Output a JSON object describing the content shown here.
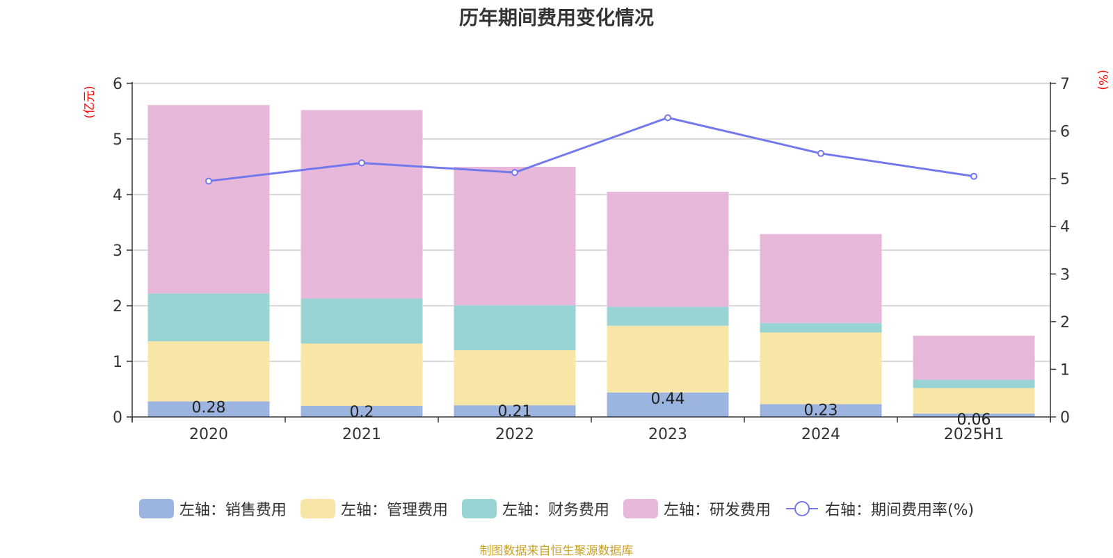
{
  "chart_data": {
    "type": "bar",
    "title": "历年期间费用变化情况",
    "categories": [
      "2020",
      "2021",
      "2022",
      "2023",
      "2024",
      "2025H1"
    ],
    "y_left": {
      "unit_label": "(亿元)",
      "range": [
        0,
        6
      ],
      "ticks": [
        "0",
        "1",
        "2",
        "3",
        "4",
        "5",
        "6"
      ]
    },
    "y_right": {
      "unit_label": "(%)",
      "range": [
        0,
        7
      ],
      "ticks": [
        "0",
        "1",
        "2",
        "3",
        "4",
        "5",
        "6",
        "7"
      ]
    },
    "grid": true,
    "stacked": true,
    "series": [
      {
        "name": "左轴：销售费用",
        "kind": "bar",
        "color": "#9bb5e0",
        "values": [
          0.28,
          0.2,
          0.21,
          0.44,
          0.23,
          0.06
        ],
        "data_labels": [
          "0.28",
          "0.2",
          "0.21",
          "0.44",
          "0.23",
          "0.06"
        ]
      },
      {
        "name": "左轴：管理费用",
        "kind": "bar",
        "color": "#f8e6a6",
        "values": [
          1.08,
          1.12,
          0.99,
          1.2,
          1.29,
          0.46
        ]
      },
      {
        "name": "左轴：财务费用",
        "kind": "bar",
        "color": "#98d4d4",
        "values": [
          0.86,
          0.81,
          0.81,
          0.34,
          0.17,
          0.15
        ]
      },
      {
        "name": "左轴：研发费用",
        "kind": "bar",
        "color": "#e7b8d9",
        "values": [
          3.39,
          3.39,
          2.49,
          2.07,
          1.6,
          0.79
        ]
      },
      {
        "name": "右轴：期间费用率(%)",
        "kind": "line",
        "axis": "right",
        "color": "#7378ed",
        "values": [
          4.95,
          5.33,
          5.13,
          6.28,
          5.53,
          5.05
        ]
      }
    ],
    "legend_position": "bottom",
    "source": "制图数据来自恒生聚源数据库"
  }
}
